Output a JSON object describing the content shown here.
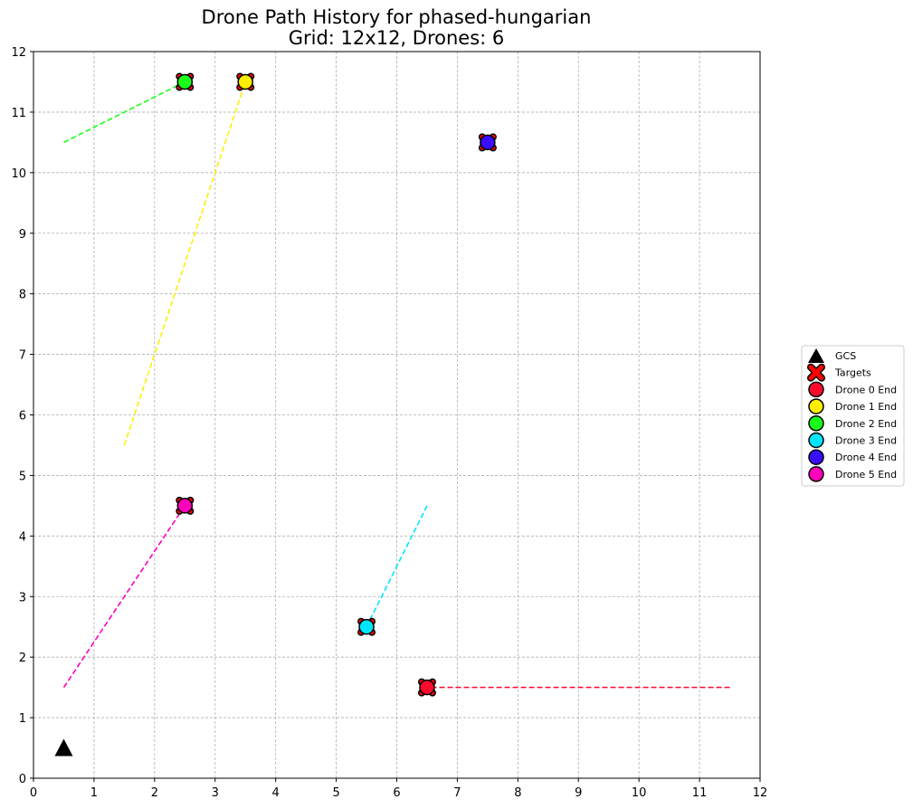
{
  "title_line1": "Drone Path History for phased-hungarian",
  "title_line2": "Grid: 12x12, Drones: 6",
  "chart_data": {
    "type": "scatter",
    "title": "Drone Path History for phased-hungarian\nGrid: 12x12, Drones: 6",
    "xlim": [
      0,
      12
    ],
    "ylim": [
      0,
      12
    ],
    "xticks": [
      "0",
      "1",
      "2",
      "3",
      "4",
      "5",
      "6",
      "7",
      "8",
      "9",
      "10",
      "11",
      "12"
    ],
    "yticks": [
      "0",
      "1",
      "2",
      "3",
      "4",
      "5",
      "6",
      "7",
      "8",
      "9",
      "10",
      "11",
      "12"
    ],
    "grid": true,
    "legend_position": "right",
    "gcs": {
      "name": "GCS",
      "x": 0.5,
      "y": 0.5,
      "color": "#000000"
    },
    "targets": {
      "name": "Targets",
      "color": "#ff0000",
      "points": [
        [
          6.5,
          1.5
        ],
        [
          3.5,
          11.5
        ],
        [
          2.5,
          11.5
        ],
        [
          5.5,
          2.5
        ],
        [
          7.5,
          10.5
        ],
        [
          2.5,
          4.5
        ]
      ]
    },
    "series": [
      {
        "name": "Drone 0 End",
        "color": "#ff0a2d",
        "path": [
          [
            11.5,
            1.5
          ],
          [
            6.5,
            1.5
          ]
        ],
        "end": [
          6.5,
          1.5
        ]
      },
      {
        "name": "Drone 1 End",
        "color": "#ffee00",
        "path": [
          [
            1.5,
            5.5
          ],
          [
            3.5,
            11.5
          ]
        ],
        "end": [
          3.5,
          11.5
        ]
      },
      {
        "name": "Drone 2 End",
        "color": "#1aff1a",
        "path": [
          [
            0.5,
            10.5
          ],
          [
            2.5,
            11.5
          ]
        ],
        "end": [
          2.5,
          11.5
        ]
      },
      {
        "name": "Drone 3 End",
        "color": "#00e5ff",
        "path": [
          [
            6.5,
            4.5
          ],
          [
            5.5,
            2.5
          ]
        ],
        "end": [
          5.5,
          2.5
        ]
      },
      {
        "name": "Drone 4 End",
        "color": "#3a0dff",
        "path": [
          [
            7.5,
            10.5
          ],
          [
            7.5,
            10.5
          ]
        ],
        "end": [
          7.5,
          10.5
        ]
      },
      {
        "name": "Drone 5 End",
        "color": "#ff00bb",
        "path": [
          [
            0.5,
            1.5
          ],
          [
            2.5,
            4.5
          ]
        ],
        "end": [
          2.5,
          4.5
        ]
      }
    ]
  }
}
